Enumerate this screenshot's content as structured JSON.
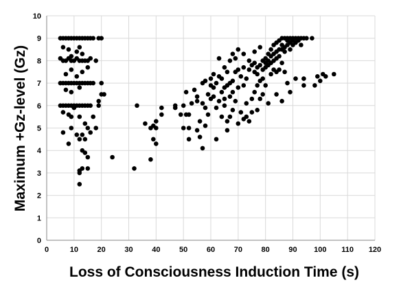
{
  "chart_data": {
    "type": "scatter",
    "xlabel": "Loss of Consciousness Induction Time (s)",
    "ylabel": "Maximum +Gz-level (Gz)",
    "xlim": [
      0,
      120
    ],
    "ylim": [
      0,
      10
    ],
    "xticks": [
      0,
      10,
      20,
      30,
      40,
      50,
      60,
      70,
      80,
      90,
      100,
      110,
      120
    ],
    "yticks": [
      0,
      1,
      2,
      3,
      4,
      5,
      6,
      7,
      8,
      9,
      10
    ],
    "grid": "on",
    "marker_color": "#000000",
    "series": [
      {
        "points": [
          [
            5,
            9
          ],
          [
            6,
            9
          ],
          [
            7,
            9
          ],
          [
            8,
            9
          ],
          [
            9,
            9
          ],
          [
            10,
            9
          ],
          [
            11,
            9
          ],
          [
            12,
            9
          ],
          [
            13,
            9
          ],
          [
            14,
            9
          ],
          [
            15,
            9
          ],
          [
            16,
            9
          ],
          [
            17,
            9
          ],
          [
            19,
            9
          ],
          [
            20,
            9
          ],
          [
            5,
            8.1
          ],
          [
            6,
            8
          ],
          [
            7,
            8
          ],
          [
            8,
            8.1
          ],
          [
            9,
            8
          ],
          [
            10,
            8
          ],
          [
            11,
            8.1
          ],
          [
            12,
            8
          ],
          [
            13,
            8
          ],
          [
            14,
            8
          ],
          [
            15,
            8
          ],
          [
            16,
            8.1
          ],
          [
            18,
            8
          ],
          [
            6,
            8.6
          ],
          [
            8,
            8.5
          ],
          [
            9,
            8.2
          ],
          [
            11,
            8.4
          ],
          [
            12,
            8.6
          ],
          [
            13,
            8.3
          ],
          [
            5,
            7
          ],
          [
            6,
            7
          ],
          [
            7,
            7
          ],
          [
            8,
            7
          ],
          [
            9,
            7
          ],
          [
            10,
            7
          ],
          [
            11,
            7
          ],
          [
            12,
            7
          ],
          [
            13,
            7
          ],
          [
            14,
            7
          ],
          [
            15,
            7
          ],
          [
            16,
            7
          ],
          [
            17,
            7
          ],
          [
            20,
            7
          ],
          [
            7,
            7.4
          ],
          [
            9,
            7.6
          ],
          [
            11,
            7.3
          ],
          [
            13,
            7.5
          ],
          [
            15,
            7.7
          ],
          [
            7,
            6.7
          ],
          [
            9,
            6.6
          ],
          [
            12,
            6.8
          ],
          [
            5,
            6
          ],
          [
            6,
            6
          ],
          [
            7,
            6
          ],
          [
            8,
            6
          ],
          [
            9,
            6
          ],
          [
            10,
            6
          ],
          [
            11,
            6
          ],
          [
            12,
            6
          ],
          [
            13,
            6
          ],
          [
            14,
            6
          ],
          [
            15,
            6
          ],
          [
            16,
            6
          ],
          [
            19,
            6
          ],
          [
            20,
            6.5
          ],
          [
            6,
            5.7
          ],
          [
            8,
            5.6
          ],
          [
            9,
            5.5
          ],
          [
            10,
            5.9
          ],
          [
            12,
            5.5
          ],
          [
            14,
            5.2
          ],
          [
            17,
            5.5
          ],
          [
            19,
            6.2
          ],
          [
            21,
            6.5
          ],
          [
            6,
            4.8
          ],
          [
            9,
            5
          ],
          [
            11,
            4.7
          ],
          [
            13,
            4.7
          ],
          [
            14,
            4.5
          ],
          [
            15,
            5
          ],
          [
            16,
            4.8
          ],
          [
            18,
            5
          ],
          [
            8,
            4.3
          ],
          [
            12,
            4.5
          ],
          [
            13,
            4
          ],
          [
            14,
            3.9
          ],
          [
            15,
            3.7
          ],
          [
            12,
            3.1
          ],
          [
            12,
            3
          ],
          [
            13,
            3.2
          ],
          [
            15,
            3.2
          ],
          [
            12,
            2.5
          ],
          [
            24,
            3.7
          ],
          [
            32,
            3.2
          ],
          [
            33,
            6
          ],
          [
            36,
            5.2
          ],
          [
            38,
            3.6
          ],
          [
            38,
            5
          ],
          [
            39,
            5.1
          ],
          [
            39,
            4.5
          ],
          [
            40,
            5.3
          ],
          [
            40,
            5
          ],
          [
            40,
            4.3
          ],
          [
            42,
            5.6
          ],
          [
            42,
            5.9
          ],
          [
            47,
            6
          ],
          [
            47,
            5.9
          ],
          [
            49,
            5.6
          ],
          [
            50,
            6
          ],
          [
            50,
            5
          ],
          [
            51,
            5.6
          ],
          [
            51,
            6.6
          ],
          [
            52,
            5.6
          ],
          [
            52,
            4.5
          ],
          [
            52,
            5
          ],
          [
            53,
            6.1
          ],
          [
            54,
            6.7
          ],
          [
            55,
            6.4
          ],
          [
            55,
            6.2
          ],
          [
            55,
            4.9
          ],
          [
            56,
            5.3
          ],
          [
            56,
            4.6
          ],
          [
            57,
            6.1
          ],
          [
            57,
            7
          ],
          [
            57,
            4.1
          ],
          [
            58,
            7.1
          ],
          [
            58,
            5.9
          ],
          [
            58,
            5.1
          ],
          [
            59,
            6.5
          ],
          [
            59,
            5.6
          ],
          [
            60,
            6.9
          ],
          [
            60,
            6.3
          ],
          [
            60,
            7.2
          ],
          [
            61,
            6.8
          ],
          [
            61,
            7.4
          ],
          [
            61,
            6.4
          ],
          [
            62,
            5.9
          ],
          [
            62,
            7
          ],
          [
            62,
            4.5
          ],
          [
            63,
            6.2
          ],
          [
            63,
            7.3
          ],
          [
            63,
            8.1
          ],
          [
            64,
            6.6
          ],
          [
            64,
            7.2
          ],
          [
            64,
            5.5
          ],
          [
            65,
            6.3
          ],
          [
            65,
            6.8
          ],
          [
            65,
            7.7
          ],
          [
            65,
            6
          ],
          [
            66,
            6.9
          ],
          [
            66,
            7.5
          ],
          [
            66,
            5.3
          ],
          [
            66,
            4.9
          ],
          [
            67,
            7
          ],
          [
            67,
            6.4
          ],
          [
            67,
            8
          ],
          [
            67,
            5.5
          ],
          [
            68,
            7.1
          ],
          [
            68,
            6.6
          ],
          [
            68,
            8.3
          ],
          [
            68,
            5.8
          ],
          [
            69,
            7.5
          ],
          [
            69,
            6.2
          ],
          [
            69,
            8.1
          ],
          [
            70,
            7.6
          ],
          [
            70,
            5.2
          ],
          [
            70,
            6.8
          ],
          [
            70,
            8.5
          ],
          [
            71,
            7.3
          ],
          [
            71,
            5.7
          ],
          [
            72,
            7.7
          ],
          [
            72,
            6.9
          ],
          [
            72,
            5.4
          ],
          [
            72,
            8.3
          ],
          [
            73,
            7.2
          ],
          [
            73,
            5.5
          ],
          [
            73,
            6.1
          ],
          [
            74,
            7.6
          ],
          [
            74,
            5.3
          ],
          [
            74,
            8
          ],
          [
            75,
            7.8
          ],
          [
            75,
            6.3
          ],
          [
            75,
            5.7
          ],
          [
            76,
            7.5
          ],
          [
            76,
            6.6
          ],
          [
            76,
            7.9
          ],
          [
            76,
            8.4
          ],
          [
            77,
            7.7
          ],
          [
            77,
            5.8
          ],
          [
            77,
            7.4
          ],
          [
            77,
            6.9
          ],
          [
            78,
            7.8
          ],
          [
            78,
            7.1
          ],
          [
            78,
            6.3
          ],
          [
            78,
            8.6
          ],
          [
            79,
            8
          ],
          [
            79,
            7.6
          ],
          [
            79,
            6.5
          ],
          [
            79,
            7.2
          ],
          [
            80,
            8.1
          ],
          [
            80,
            7.7
          ],
          [
            80,
            7.9
          ],
          [
            80,
            6.9
          ],
          [
            81,
            8.3
          ],
          [
            81,
            7.8
          ],
          [
            81,
            6.1
          ],
          [
            81,
            8
          ],
          [
            82,
            8.2
          ],
          [
            82,
            7.9
          ],
          [
            82,
            8.5
          ],
          [
            82,
            7.4
          ],
          [
            83,
            8.3
          ],
          [
            83,
            8
          ],
          [
            83,
            8.7
          ],
          [
            83,
            7.6
          ],
          [
            84,
            8.4
          ],
          [
            84,
            8.1
          ],
          [
            84,
            8.8
          ],
          [
            84,
            7.5
          ],
          [
            84,
            6.5
          ],
          [
            85,
            8.5
          ],
          [
            85,
            8.2
          ],
          [
            85,
            8.9
          ],
          [
            85,
            7.6
          ],
          [
            86,
            8.5
          ],
          [
            86,
            8.7
          ],
          [
            86,
            9
          ],
          [
            86,
            7.9
          ],
          [
            86,
            6.2
          ],
          [
            87,
            8.6
          ],
          [
            87,
            8.4
          ],
          [
            87,
            9
          ],
          [
            87,
            7.5
          ],
          [
            88,
            8.7
          ],
          [
            88,
            8.9
          ],
          [
            88,
            9
          ],
          [
            88,
            7
          ],
          [
            89,
            8.8
          ],
          [
            89,
            9
          ],
          [
            89,
            8.5
          ],
          [
            89,
            6.6
          ],
          [
            90,
            8.9
          ],
          [
            90,
            9
          ],
          [
            90,
            8.7
          ],
          [
            91,
            9
          ],
          [
            91,
            8.8
          ],
          [
            91,
            7.2
          ],
          [
            92,
            9
          ],
          [
            92,
            8.9
          ],
          [
            93,
            9
          ],
          [
            93,
            8.7
          ],
          [
            94,
            9
          ],
          [
            94,
            7.2
          ],
          [
            95,
            9
          ],
          [
            97,
            9
          ],
          [
            94,
            6.9
          ],
          [
            99,
            7.3
          ],
          [
            100,
            7.1
          ],
          [
            101,
            7.4
          ],
          [
            102,
            7.3
          ],
          [
            105,
            7.4
          ],
          [
            98,
            6.9
          ]
        ]
      }
    ]
  }
}
